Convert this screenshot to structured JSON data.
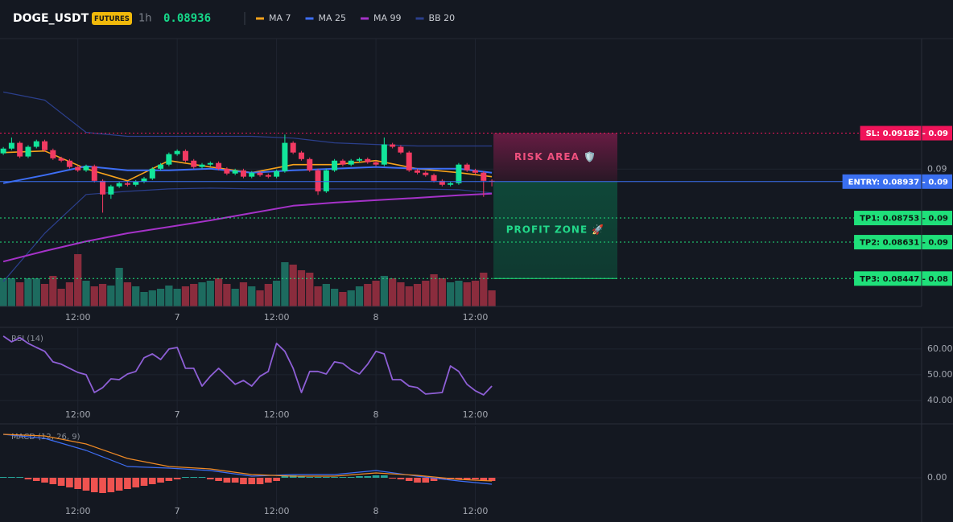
{
  "header": {
    "symbol": "DOGE_USDT",
    "badge": "FUTURES",
    "interval": "1h",
    "price": "0.08936"
  },
  "chart_data": [
    {
      "type": "candlestick",
      "xlim": [
        -0.4,
        110.9
      ],
      "xticks": [
        {
          "value": 9,
          "label": "12:00"
        },
        {
          "value": 21,
          "label": "7"
        },
        {
          "value": 33,
          "label": "12:00"
        },
        {
          "value": 45,
          "label": "8"
        },
        {
          "value": 57,
          "label": "12:00"
        }
      ],
      "ylim": [
        0.0831,
        0.0966
      ],
      "yticks": [
        0.09
      ],
      "up_color": "#12e59a",
      "down_color": "#f23a62",
      "volume_up_color": "#1d6b5f",
      "volume_down_color": "#8a2c3d",
      "open": [
        0.0908,
        0.09104,
        0.09133,
        0.09064,
        0.09113,
        0.09141,
        0.09096,
        0.09055,
        0.09043,
        0.09011,
        0.08994,
        0.09015,
        0.08941,
        0.08872,
        0.08913,
        0.08929,
        0.08921,
        0.08937,
        0.08953,
        0.09002,
        0.09023,
        0.09076,
        0.09092,
        0.09043,
        0.09011,
        0.09023,
        0.09031,
        0.09002,
        0.08978,
        0.08994,
        0.08962,
        0.08982,
        0.0897,
        0.08962,
        0.0899,
        0.09133,
        0.09084,
        0.09051,
        0.08994,
        0.08888,
        0.08994,
        0.09043,
        0.09023,
        0.09043,
        0.09051,
        0.09035,
        0.09023,
        0.09125,
        0.09113,
        0.09084,
        0.08994,
        0.08982,
        0.0897,
        0.08941,
        0.08921,
        0.08929,
        0.09023,
        0.08994,
        0.08982,
        0.08941
      ],
      "high": [
        0.09112,
        0.0916,
        0.09141,
        0.09121,
        0.09149,
        0.09149,
        0.09104,
        0.09063,
        0.09051,
        0.09019,
        0.09023,
        0.09023,
        0.08949,
        0.08921,
        0.08937,
        0.08937,
        0.08945,
        0.08961,
        0.0901,
        0.09031,
        0.09084,
        0.091,
        0.091,
        0.09051,
        0.09031,
        0.09039,
        0.09039,
        0.0901,
        0.09002,
        0.09002,
        0.0899,
        0.0899,
        0.08978,
        0.08998,
        0.09175,
        0.09141,
        0.09092,
        0.09059,
        0.09002,
        0.09002,
        0.09051,
        0.09051,
        0.09051,
        0.09059,
        0.09059,
        0.09043,
        0.0916,
        0.09133,
        0.09121,
        0.09092,
        0.09002,
        0.0899,
        0.08978,
        0.08949,
        0.08937,
        0.09031,
        0.09031,
        0.09002,
        0.0899,
        0.08949
      ],
      "low": [
        0.09072,
        0.09096,
        0.09056,
        0.09056,
        0.09105,
        0.09088,
        0.09047,
        0.09035,
        0.09003,
        0.08986,
        0.08986,
        0.08933,
        0.0878,
        0.0885,
        0.08905,
        0.08913,
        0.08913,
        0.08929,
        0.08945,
        0.08994,
        0.09015,
        0.09068,
        0.09035,
        0.09003,
        0.09003,
        0.09015,
        0.08994,
        0.0897,
        0.0897,
        0.08954,
        0.08954,
        0.08962,
        0.08954,
        0.08954,
        0.08982,
        0.09076,
        0.09043,
        0.08986,
        0.0887,
        0.0888,
        0.08986,
        0.09015,
        0.09015,
        0.09035,
        0.09027,
        0.09015,
        0.09015,
        0.09105,
        0.09076,
        0.08986,
        0.08974,
        0.08962,
        0.08933,
        0.08913,
        0.08913,
        0.08921,
        0.08986,
        0.08974,
        0.0886,
        0.08913
      ],
      "close": [
        0.09104,
        0.09133,
        0.09064,
        0.09113,
        0.09141,
        0.09096,
        0.09055,
        0.09043,
        0.09011,
        0.08994,
        0.09015,
        0.08941,
        0.08872,
        0.08913,
        0.08929,
        0.08921,
        0.08937,
        0.08953,
        0.09002,
        0.09023,
        0.09076,
        0.09092,
        0.09043,
        0.09011,
        0.09023,
        0.09031,
        0.09002,
        0.08978,
        0.08994,
        0.08962,
        0.08982,
        0.0897,
        0.08962,
        0.0899,
        0.09133,
        0.09084,
        0.09051,
        0.08994,
        0.08888,
        0.08994,
        0.09043,
        0.09023,
        0.09043,
        0.09051,
        0.09035,
        0.09023,
        0.09125,
        0.09113,
        0.09084,
        0.08994,
        0.08982,
        0.0897,
        0.08941,
        0.08921,
        0.08929,
        0.09023,
        0.08994,
        0.08982,
        0.08941,
        0.08936
      ],
      "volume": [
        35,
        35,
        30,
        35,
        35,
        28,
        38,
        22,
        30,
        65,
        32,
        25,
        28,
        26,
        48,
        30,
        25,
        18,
        20,
        22,
        26,
        22,
        25,
        28,
        30,
        32,
        35,
        28,
        22,
        30,
        25,
        20,
        28,
        32,
        55,
        52,
        45,
        42,
        25,
        28,
        22,
        18,
        20,
        25,
        28,
        32,
        38,
        35,
        30,
        25,
        28,
        32,
        40,
        35,
        30,
        32,
        30,
        32,
        42,
        20
      ],
      "lines": {
        "x": [
          0,
          5,
          10,
          15,
          20,
          25,
          30,
          35,
          40,
          45,
          50,
          55,
          59
        ],
        "series": [
          {
            "name": "MA 7",
            "color": "#f7a21b",
            "values": [
              0.09084,
              0.09092,
              0.09002,
              0.08941,
              0.09043,
              0.09011,
              0.08982,
              0.09023,
              0.09023,
              0.09043,
              0.09002,
              0.08982,
              0.08962
            ]
          },
          {
            "name": "MA 25",
            "color": "#3d6ef5",
            "values": [
              0.08929,
              0.0897,
              0.09015,
              0.08994,
              0.08994,
              0.09002,
              0.08982,
              0.08994,
              0.09002,
              0.09011,
              0.09002,
              0.09002,
              0.08982
            ]
          },
          {
            "name": "MA 99",
            "color": "#a532c8",
            "values": [
              0.08533,
              0.08586,
              0.08635,
              0.08676,
              0.08708,
              0.08741,
              0.08778,
              0.08815,
              0.08831,
              0.08843,
              0.08855,
              0.08868,
              0.08876
            ]
          }
        ],
        "bb": {
          "name": "BB 20",
          "color": "#2b3f8c",
          "upper": [
            0.0939,
            0.09349,
            0.09186,
            0.09166,
            0.09166,
            0.09166,
            0.09166,
            0.09157,
            0.09133,
            0.09125,
            0.09117,
            0.09117,
            0.09117
          ],
          "lower": [
            0.08431,
            0.08676,
            0.08872,
            0.08888,
            0.089,
            0.08904,
            0.089,
            0.089,
            0.089,
            0.089,
            0.089,
            0.08896,
            0.0888
          ]
        }
      },
      "levels": [
        {
          "value": 0.09182,
          "label": "SL: 0.09182 - 0.09",
          "color": "#f0145a",
          "text_color": "#ffffff",
          "style": "dotted"
        },
        {
          "value": 0.08937,
          "label": "ENTRY: 0.08937 - 0.09",
          "color": "#3a6ff0",
          "text_color": "#ffffff",
          "style": "solid"
        },
        {
          "value": 0.08753,
          "label": "TP1: 0.08753 - 0.09",
          "color": "#1fe07a",
          "text_color": "#0d1a12",
          "style": "dotted"
        },
        {
          "value": 0.08631,
          "label": "TP2: 0.08631 - 0.09",
          "color": "#1fe07a",
          "text_color": "#0d1a12",
          "style": "dotted"
        },
        {
          "value": 0.08447,
          "label": "TP3: 0.08447 - 0.08",
          "color": "#1fe07a",
          "text_color": "#0d1a12",
          "style": "dotted"
        }
      ],
      "risk_label": "RISK AREA 🛡️",
      "profit_label": "PROFIT ZONE 🚀"
    },
    {
      "type": "line",
      "title": "RSI (14)",
      "color": "#8e5fd6",
      "xlim": [
        -0.4,
        110.9
      ],
      "xticks": [
        {
          "value": 9,
          "label": "12:00"
        },
        {
          "value": 21,
          "label": "7"
        },
        {
          "value": 33,
          "label": "12:00"
        },
        {
          "value": 45,
          "label": "8"
        },
        {
          "value": 57,
          "label": "12:00"
        }
      ],
      "ylim": [
        30.6,
        68.1
      ],
      "yticks": [
        {
          "value": 40,
          "label": "40.00"
        },
        {
          "value": 50,
          "label": "50.00"
        },
        {
          "value": 60,
          "label": "60.00"
        }
      ],
      "values": [
        65.0,
        62.8,
        64.4,
        62.2,
        60.6,
        59.1,
        55.0,
        54.1,
        52.5,
        50.9,
        50.0,
        43.1,
        45.0,
        48.4,
        48.1,
        50.3,
        51.3,
        56.6,
        58.1,
        55.9,
        60.0,
        60.6,
        52.5,
        52.5,
        45.6,
        49.4,
        52.5,
        49.4,
        46.3,
        47.8,
        45.6,
        49.4,
        51.3,
        62.2,
        59.1,
        52.5,
        43.1,
        51.3,
        51.3,
        50.3,
        55.0,
        54.4,
        51.9,
        50.3,
        54.1,
        59.1,
        58.1,
        48.1,
        48.1,
        45.6,
        45.0,
        42.5,
        42.8,
        43.1,
        53.4,
        51.3,
        46.3,
        43.8,
        42.2,
        45.6
      ]
    },
    {
      "type": "macd",
      "title": "MACD (12, 26, 9)",
      "xlim": [
        -0.4,
        110.9
      ],
      "xticks": [
        {
          "value": 9,
          "label": "12:00"
        },
        {
          "value": 21,
          "label": "7"
        },
        {
          "value": 33,
          "label": "12:00"
        },
        {
          "value": 45,
          "label": "8"
        },
        {
          "value": 57,
          "label": "12:00"
        }
      ],
      "ylim": [
        -0.000255,
        0.00032
      ],
      "yticks": [
        {
          "value": 0,
          "label": "0.00"
        }
      ],
      "x": [
        0,
        5,
        10,
        15,
        20,
        25,
        30,
        35,
        40,
        45,
        50,
        55,
        59
      ],
      "series": [
        {
          "color": "#3d6ef5",
          "values": [
            0.00027,
            0.000245,
            0.00017,
            7e-05,
            6e-05,
            4.5e-05,
            1e-05,
            2e-05,
            2e-05,
            4.5e-05,
            1e-05,
            -2e-05,
            -4e-05
          ]
        },
        {
          "color": "#f08a24",
          "values": [
            0.00027,
            0.00026,
            0.00021,
            0.00012,
            7e-05,
            5.5e-05,
            2e-05,
            1e-05,
            1e-05,
            3e-05,
            1.5e-05,
            -1e-05,
            -2e-05
          ]
        }
      ],
      "histogram": {
        "up_color": "#26a69a",
        "down_color": "#ef5350",
        "values": [
          5e-06,
          5e-06,
          5e-06,
          -1e-05,
          -2e-05,
          -3e-05,
          -4e-05,
          -5e-05,
          -6e-05,
          -7e-05,
          -8e-05,
          -9e-05,
          -9.5e-05,
          -9e-05,
          -8e-05,
          -7e-05,
          -6e-05,
          -5e-05,
          -4e-05,
          -3e-05,
          -2e-05,
          -1e-05,
          5e-06,
          5e-06,
          5e-06,
          -1e-05,
          -2e-05,
          -3e-05,
          -3e-05,
          -4e-05,
          -4e-05,
          -4e-05,
          -3e-05,
          -2e-05,
          1e-05,
          1.5e-05,
          1e-05,
          5e-06,
          5e-06,
          5e-06,
          5e-06,
          5e-06,
          5e-06,
          1e-05,
          1e-05,
          1.5e-05,
          1.5e-05,
          -5e-06,
          -1e-05,
          -2e-05,
          -3e-05,
          -3e-05,
          -2e-05,
          -1e-05,
          -1e-05,
          -1e-05,
          -1e-05,
          -1e-05,
          -2e-05,
          -2e-05
        ]
      }
    }
  ]
}
